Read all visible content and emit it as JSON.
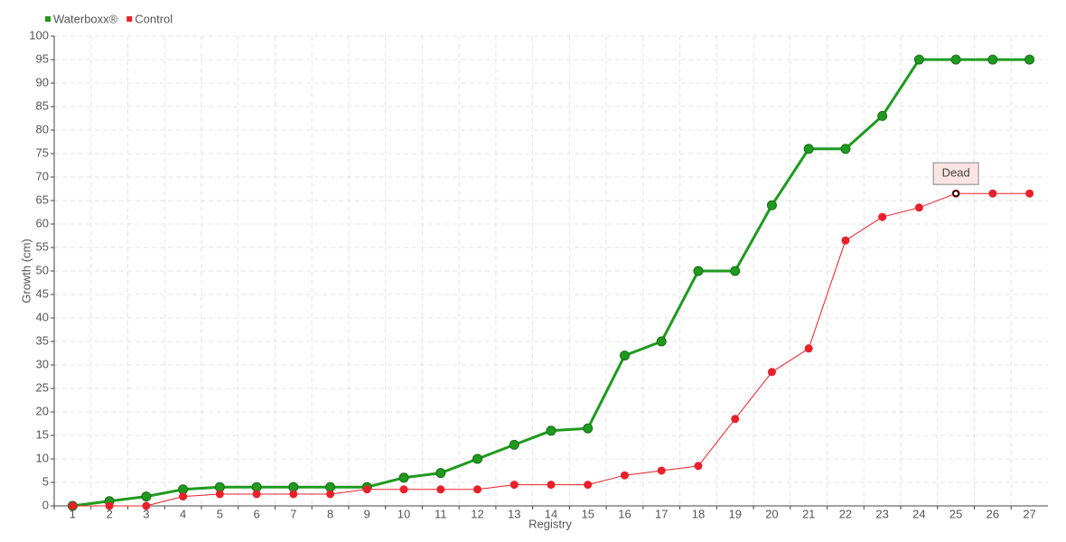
{
  "chart_data": {
    "type": "line",
    "categories": [
      "1",
      "2",
      "3",
      "4",
      "5",
      "6",
      "7",
      "8",
      "9",
      "10",
      "11",
      "12",
      "13",
      "14",
      "15",
      "16",
      "17",
      "18",
      "19",
      "20",
      "21",
      "22",
      "23",
      "24",
      "25",
      "26",
      "27"
    ],
    "x_label": "Registry",
    "y_label": "Growth (cm)",
    "ylim": [
      0,
      100
    ],
    "yticks": [
      0,
      5,
      10,
      15,
      20,
      25,
      30,
      35,
      40,
      45,
      50,
      55,
      60,
      65,
      70,
      75,
      80,
      85,
      90,
      95,
      100
    ],
    "grid": true,
    "legend": "top-left",
    "series": [
      {
        "name": "Waterboxx®",
        "color": "#1f9a1f",
        "values": [
          0,
          1,
          2,
          3.5,
          4,
          4,
          4,
          4,
          4,
          6,
          7,
          10,
          13,
          16,
          16.5,
          32,
          35,
          50,
          50,
          64,
          76,
          76,
          83,
          95,
          95,
          95,
          95
        ]
      },
      {
        "name": "Control",
        "color": "#e8202a",
        "values": [
          0,
          0,
          0,
          2,
          2.5,
          2.5,
          2.5,
          2.5,
          3.5,
          3.5,
          3.5,
          3.5,
          4.5,
          4.5,
          4.5,
          6.5,
          7.5,
          8.5,
          18.5,
          28.5,
          33.5,
          56.5,
          61.5,
          63.5,
          66.5,
          66.5,
          66.5
        ]
      }
    ],
    "annotations": [
      {
        "text": "Dead",
        "x": "25",
        "y": 66.5
      }
    ]
  }
}
